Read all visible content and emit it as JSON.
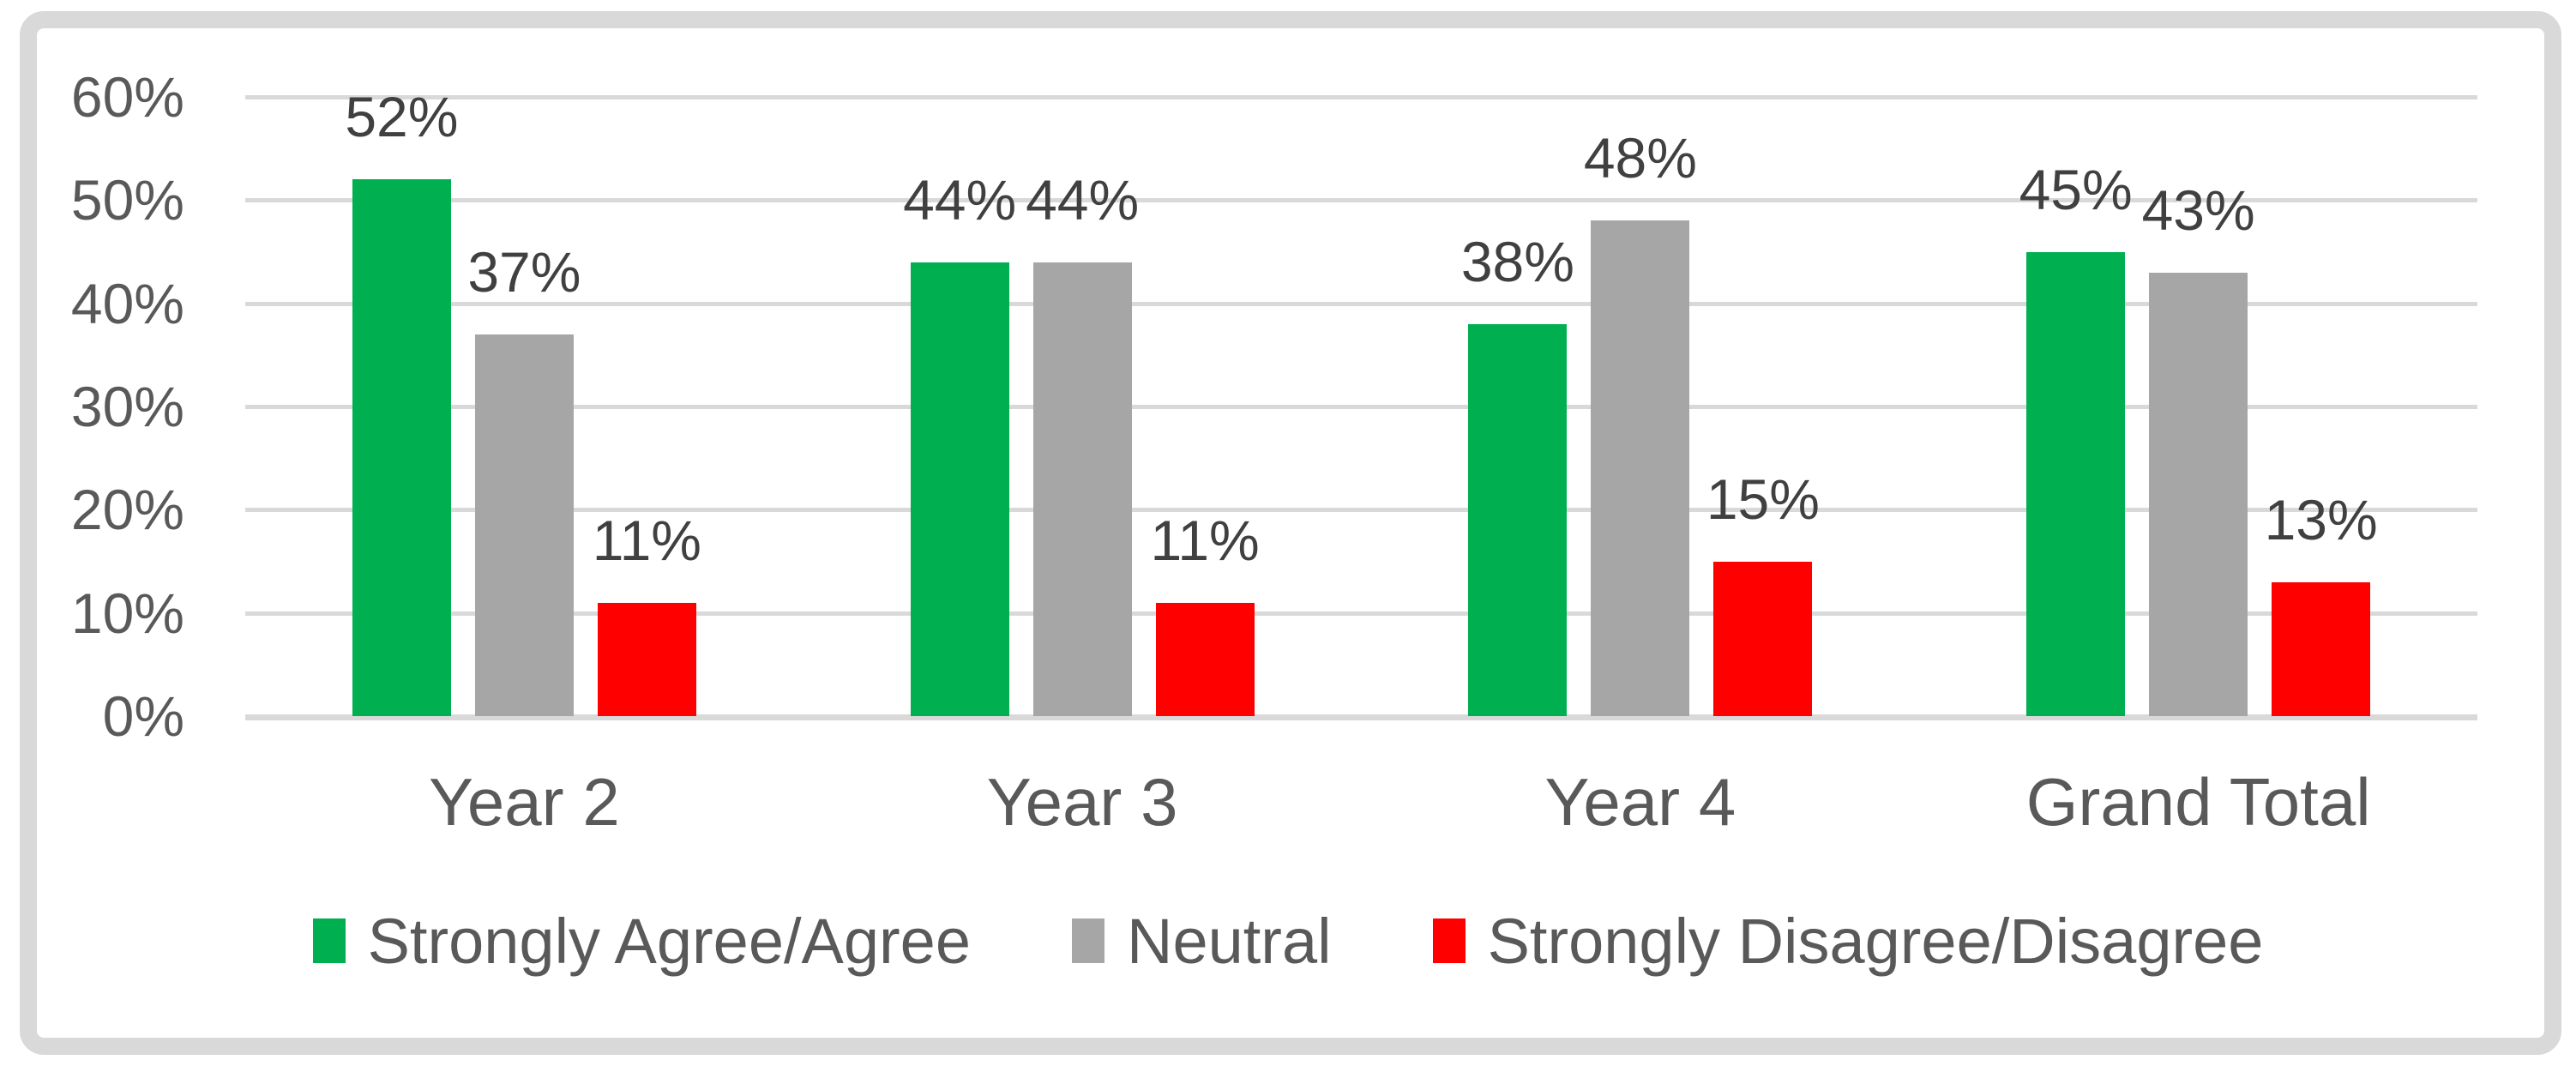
{
  "chart_data": {
    "type": "bar",
    "categories": [
      "Year 2",
      "Year 3",
      "Year 4",
      "Grand Total"
    ],
    "series": [
      {
        "name": "Strongly Agree/Agree",
        "color": "#00B050",
        "values": [
          52,
          44,
          38,
          45
        ],
        "labels": [
          "52%",
          "44%",
          "38%",
          "45%"
        ]
      },
      {
        "name": "Neutral",
        "color": "#A6A6A6",
        "values": [
          37,
          44,
          48,
          43
        ],
        "labels": [
          "37%",
          "44%",
          "48%",
          "43%"
        ]
      },
      {
        "name": "Strongly Disagree/Disagree",
        "color": "#FF0000",
        "values": [
          11,
          11,
          15,
          13
        ],
        "labels": [
          "11%",
          "11%",
          "15%",
          "13%"
        ]
      }
    ],
    "y_axis": {
      "tick_labels": [
        "60%",
        "50%",
        "40%",
        "30%",
        "20%",
        "10%",
        "0%"
      ],
      "tick_values": [
        60,
        50,
        40,
        30,
        20,
        10,
        0
      ]
    },
    "ylim": [
      0,
      60
    ],
    "grid": true,
    "legend_position": "bottom",
    "title": "",
    "xlabel": "",
    "ylabel": ""
  },
  "colors": {
    "gridline": "#D9D9D9",
    "frame_border": "#D9D9D9",
    "axis_text": "#595959",
    "data_label_text": "#404040"
  }
}
